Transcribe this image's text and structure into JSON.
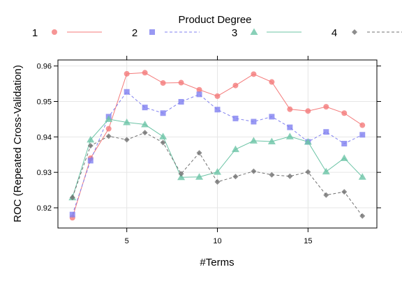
{
  "chart_data": {
    "type": "line",
    "title": "",
    "legend_title": "Product Degree",
    "legend_position": "top",
    "xlabel": "#Terms",
    "ylabel": "ROC (Repeated Cross-Validation)",
    "xlim": [
      1.2,
      18.8
    ],
    "ylim": [
      0.9143,
      0.9617
    ],
    "xticks": [
      5,
      10,
      15
    ],
    "yticks": [
      0.92,
      0.93,
      0.94,
      0.95,
      0.96
    ],
    "ytick_labels": [
      "0.92",
      "0.93",
      "0.94",
      "0.95",
      "0.96"
    ],
    "grid": true,
    "x": [
      2,
      3,
      4,
      5,
      6,
      7,
      8,
      9,
      10,
      11,
      12,
      13,
      14,
      15,
      16,
      17,
      18
    ],
    "series": [
      {
        "name": "1",
        "color": "#f47a7a",
        "marker": "circle",
        "dash": "solid",
        "values": [
          0.9172,
          0.934,
          0.9423,
          0.9578,
          0.9581,
          0.9552,
          0.9553,
          0.9533,
          0.9515,
          0.9545,
          0.9577,
          0.9555,
          0.9478,
          0.9473,
          0.9485,
          0.9467,
          0.9433
        ]
      },
      {
        "name": "2",
        "color": "#8080f0",
        "marker": "square",
        "dash": "dashed",
        "values": [
          0.9181,
          0.9333,
          0.9457,
          0.9527,
          0.9483,
          0.9467,
          0.9499,
          0.952,
          0.9477,
          0.9452,
          0.9443,
          0.9457,
          0.9427,
          0.9386,
          0.9414,
          0.9381,
          0.9406
        ]
      },
      {
        "name": "3",
        "color": "#6cc4a6",
        "marker": "triangle",
        "dash": "solid",
        "values": [
          0.9229,
          0.9392,
          0.945,
          0.9441,
          0.9435,
          0.9401,
          0.9286,
          0.9287,
          0.9301,
          0.9365,
          0.9389,
          0.9387,
          0.9401,
          0.9386,
          0.9302,
          0.934,
          0.9287
        ]
      },
      {
        "name": "4",
        "color": "#707070",
        "marker": "diamond",
        "dash": "dashed",
        "values": [
          0.9229,
          0.9375,
          0.9402,
          0.9392,
          0.9412,
          0.9384,
          0.9296,
          0.9355,
          0.9273,
          0.9288,
          0.9303,
          0.9293,
          0.9289,
          0.9301,
          0.9236,
          0.9245,
          0.9177
        ]
      }
    ]
  }
}
